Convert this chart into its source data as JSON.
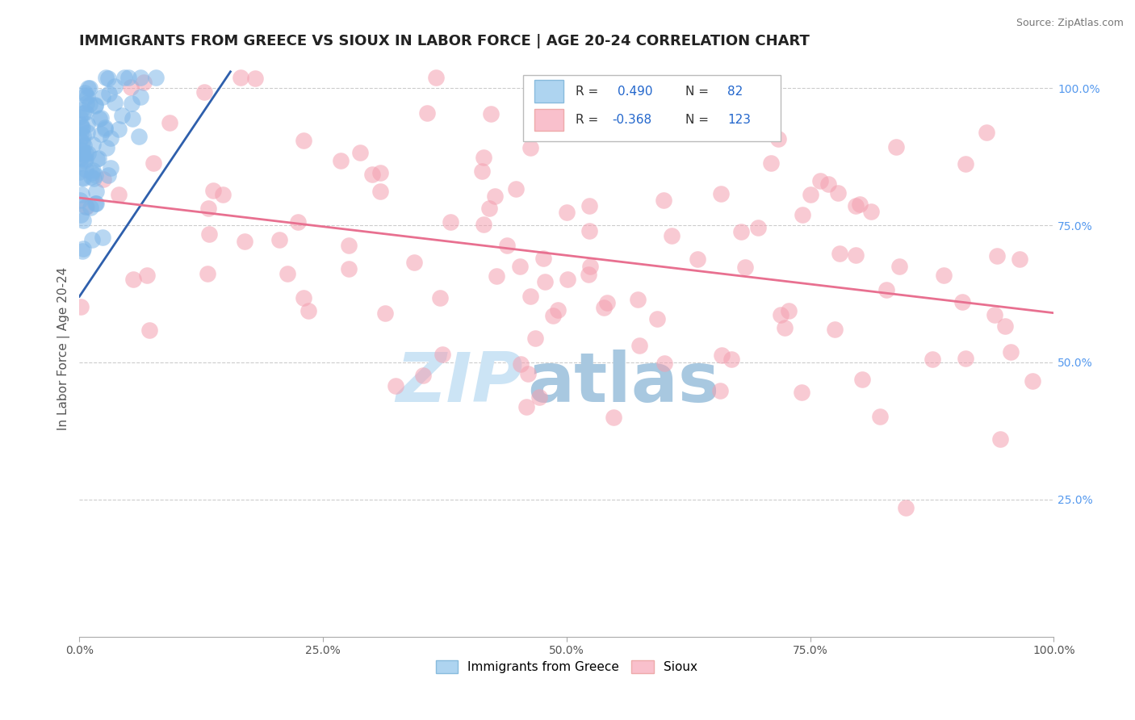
{
  "title": "IMMIGRANTS FROM GREECE VS SIOUX IN LABOR FORCE | AGE 20-24 CORRELATION CHART",
  "source": "Source: ZipAtlas.com",
  "ylabel": "In Labor Force | Age 20-24",
  "xlim": [
    0.0,
    1.0
  ],
  "ylim": [
    0.0,
    1.05
  ],
  "xticks": [
    0.0,
    0.25,
    0.5,
    0.75,
    1.0
  ],
  "xtick_labels": [
    "0.0%",
    "25.0%",
    "50.0%",
    "75.0%",
    "100.0%"
  ],
  "ytick_labels_right": [
    "25.0%",
    "50.0%",
    "75.0%",
    "100.0%"
  ],
  "yticks_right": [
    0.25,
    0.5,
    0.75,
    1.0
  ],
  "blue_R": 0.49,
  "blue_N": 82,
  "pink_R": -0.368,
  "pink_N": 123,
  "blue_color": "#7EB6E8",
  "pink_color": "#F4A0B0",
  "blue_line_color": "#2E5FAC",
  "pink_line_color": "#E87090",
  "legend_label_blue": "Immigrants from Greece",
  "legend_label_pink": "Sioux",
  "title_fontsize": 13,
  "axis_fontsize": 11,
  "tick_fontsize": 10,
  "blue_trend_x": [
    0.0,
    0.155
  ],
  "blue_trend_y": [
    0.62,
    1.03
  ],
  "pink_trend_x": [
    0.0,
    1.0
  ],
  "pink_trend_y": [
    0.8,
    0.59
  ]
}
